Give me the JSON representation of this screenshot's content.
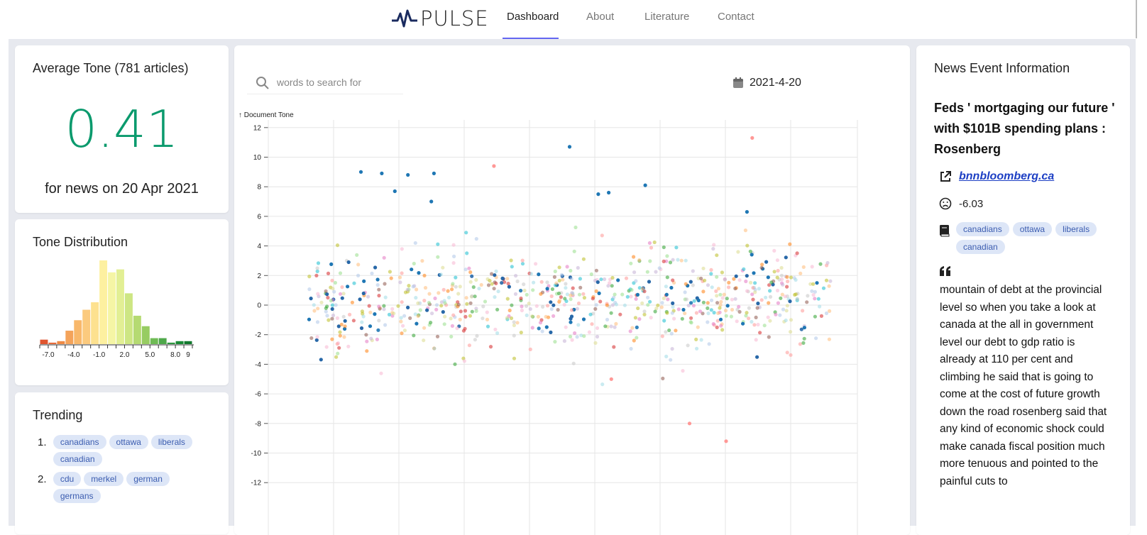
{
  "brand": {
    "name": "PULSE"
  },
  "nav": [
    {
      "label": "Dashboard",
      "active": true
    },
    {
      "label": "About"
    },
    {
      "label": "Literature"
    },
    {
      "label": "Contact"
    }
  ],
  "average_tone": {
    "title": "Average Tone (781 articles)",
    "value": "0.41",
    "subtitle": "for news on 20 Apr 2021",
    "color": "#0b9a6d"
  },
  "tone_distribution": {
    "title": "Tone Distribution",
    "tick_labels": [
      "-7.0",
      "-4.0",
      "-1.0",
      "2.0",
      "5.0",
      "8.0",
      "9"
    ],
    "bins": [
      {
        "x": -7.5,
        "count": 3,
        "color": "#e0552f"
      },
      {
        "x": -6.5,
        "count": 1,
        "color": "#e66a3a"
      },
      {
        "x": -5.5,
        "count": 2,
        "color": "#ee8a45"
      },
      {
        "x": -4.5,
        "count": 9,
        "color": "#f4a35a"
      },
      {
        "x": -3.5,
        "count": 16,
        "color": "#f8b86b"
      },
      {
        "x": -2.5,
        "count": 23,
        "color": "#fbca7e"
      },
      {
        "x": -1.5,
        "count": 28,
        "color": "#fde18f"
      },
      {
        "x": -0.5,
        "count": 56,
        "color": "#fdf0a0"
      },
      {
        "x": 0.5,
        "count": 48,
        "color": "#f5f5a5"
      },
      {
        "x": 1.5,
        "count": 50,
        "color": "#e2ef94"
      },
      {
        "x": 2.5,
        "count": 34,
        "color": "#cde683"
      },
      {
        "x": 3.5,
        "count": 19,
        "color": "#b5da72"
      },
      {
        "x": 4.5,
        "count": 12,
        "color": "#97cc62"
      },
      {
        "x": 5.5,
        "count": 4,
        "color": "#6fbb55"
      },
      {
        "x": 6.5,
        "count": 4,
        "color": "#4ea84a"
      },
      {
        "x": 7.5,
        "count": 1,
        "color": "#2d953e"
      },
      {
        "x": 8.5,
        "count": 2,
        "color": "#1a8a35"
      },
      {
        "x": 9.5,
        "count": 2,
        "color": "#137a2f"
      }
    ]
  },
  "trending": {
    "title": "Trending",
    "items": [
      {
        "number": "1.",
        "tags": [
          "canadians",
          "ottawa",
          "liberals",
          "canadian"
        ]
      },
      {
        "number": "2.",
        "tags": [
          "cdu",
          "merkel",
          "german",
          "germans"
        ]
      }
    ]
  },
  "search": {
    "placeholder": "words to search for"
  },
  "date": {
    "value": "2021-4-20"
  },
  "chart_data": {
    "type": "scatter",
    "ylabel": "↑ Document Tone",
    "ylim": [
      -13,
      12.5
    ],
    "yticks": [
      12,
      10,
      8,
      6,
      4,
      2,
      0,
      -2,
      -4,
      -6,
      -8,
      -10,
      -12
    ],
    "point_count_estimate": 781,
    "highlight_points": [
      {
        "x": 0.1,
        "y": 9.0
      },
      {
        "x": 0.14,
        "y": 8.9
      },
      {
        "x": 0.165,
        "y": 7.7
      },
      {
        "x": 0.19,
        "y": 8.8
      },
      {
        "x": 0.235,
        "y": 7.0
      },
      {
        "x": 0.24,
        "y": 8.9
      },
      {
        "x": 0.5,
        "y": 10.7
      },
      {
        "x": 0.555,
        "y": 7.5
      },
      {
        "x": 0.575,
        "y": 7.6
      },
      {
        "x": 0.645,
        "y": 8.1
      },
      {
        "x": 0.84,
        "y": 6.3
      },
      {
        "x": 0.355,
        "y": 9.4
      },
      {
        "x": 0.85,
        "y": 11.3
      },
      {
        "x": 0.58,
        "y": -5.0
      },
      {
        "x": 0.8,
        "y": -9.2
      },
      {
        "x": 0.73,
        "y": -8.0
      }
    ],
    "palette": [
      "#1f77b4",
      "#2868a8",
      "#aec7e8",
      "#ffbb78",
      "#f7b6d2",
      "#c7c7c7",
      "#98df8a",
      "#ff9896",
      "#c5b0d5",
      "#dbdb8d",
      "#9edae5",
      "#ff7f0e",
      "#2ca02c",
      "#d62728",
      "#bcbd22",
      "#17becf",
      "#e377c2",
      "#8c564b"
    ]
  },
  "news": {
    "header": "News Event Information",
    "title": "Feds ' mortgaging our future ' with $101B spending plans : Rosenberg",
    "source": "bnnbloomberg.ca",
    "tone": "-6.03",
    "tags": [
      "canadians",
      "ottawa",
      "liberals",
      "canadian"
    ],
    "quote": "mountain of debt at the provincial level so when you take a look at canada at the all in government level our debt to gdp ratio is already at 110 per cent and climbing he said that is going to come at the cost of future growth down the road rosenberg said that any kind of economic shock could make canada fiscal position much more tenuous and pointed to the painful cuts to"
  }
}
